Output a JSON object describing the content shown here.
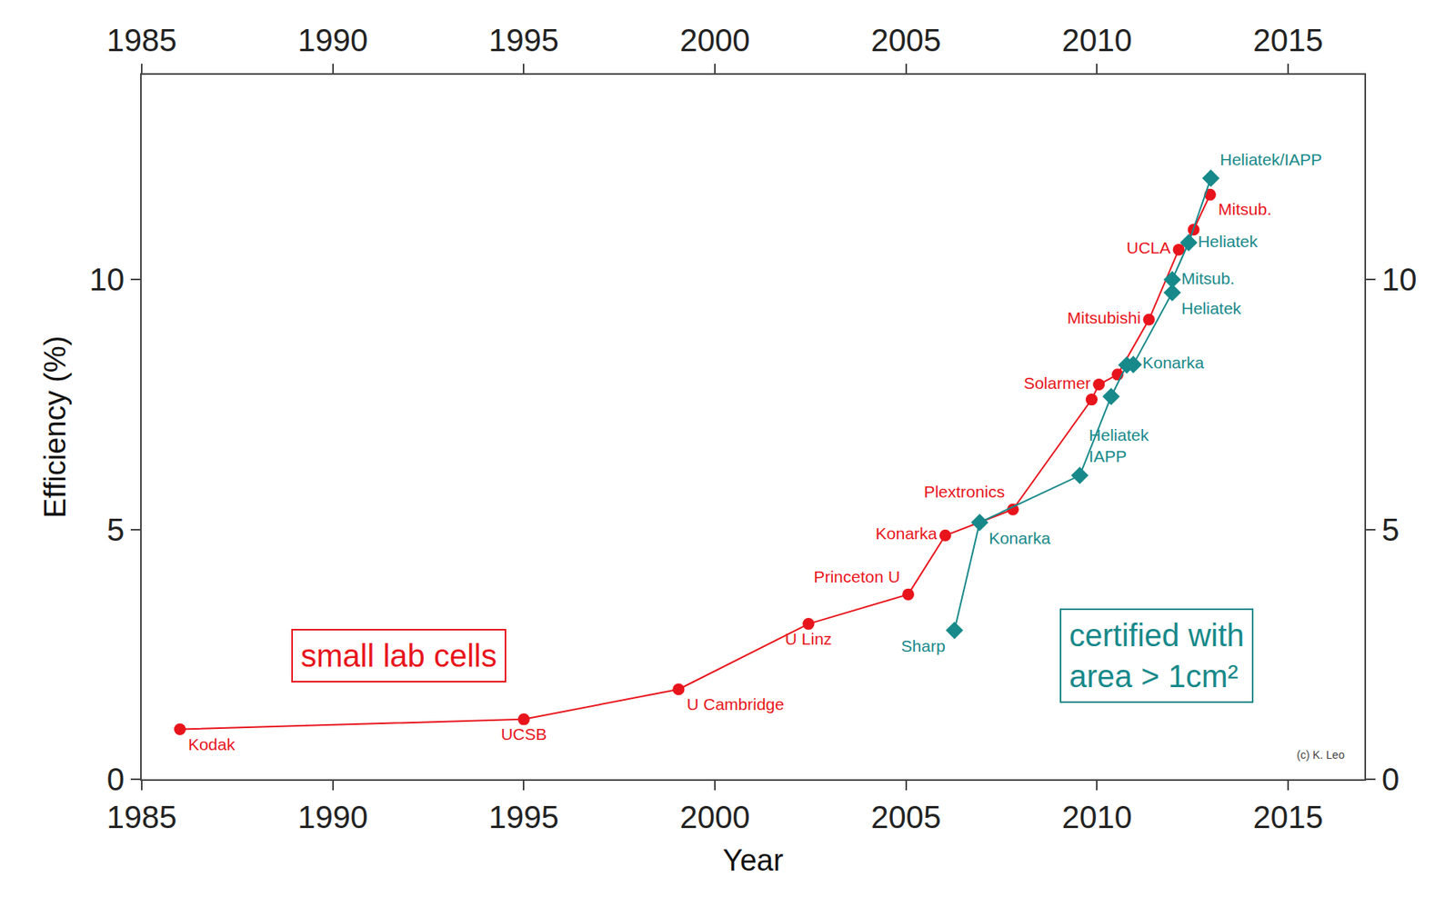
{
  "chart_data": {
    "type": "scatter",
    "x_label": "Year",
    "y_label": "Efficiency (%)",
    "xlim": [
      1985,
      2017
    ],
    "xticks": [
      1985,
      1990,
      1995,
      2000,
      2005,
      2010,
      2015
    ],
    "ylim": [
      0,
      14.1
    ],
    "yticks": [
      0,
      5,
      10
    ],
    "grid": false,
    "annotations": [
      "(c) K. Leo"
    ],
    "series": [
      {
        "name": "small lab cells",
        "color": "#e8141c",
        "marker": "circle",
        "line_style": "solid",
        "x": [
          1986.0,
          1995.0,
          1999.05,
          2002.45,
          2005.06,
          2006.03,
          2007.8,
          2009.86,
          2010.05,
          2010.54,
          2011.36,
          2012.14,
          2012.53,
          2012.96
        ],
        "values": [
          1.0,
          1.2,
          1.8,
          3.11,
          3.7,
          4.88,
          5.4,
          7.6,
          7.9,
          8.1,
          9.2,
          10.6,
          11.0,
          11.7
        ],
        "labels": [
          "Kodak",
          "UCSB",
          "U Cambridge",
          "U Linz",
          "Princeton U",
          "Konarka",
          "Plextronics",
          null,
          "Solarmer",
          null,
          "Mitsubishi",
          "UCLA",
          null,
          "Mitsub."
        ]
      },
      {
        "name": "certified with\narea > 1cm²",
        "color": "#17898a",
        "marker": "diamond",
        "line_style": "solid",
        "x": [
          2006.27,
          2006.93,
          2009.55,
          2010.37,
          2010.78,
          2010.95,
          2011.97,
          2011.97,
          2012.4,
          2012.98
        ],
        "values": [
          2.98,
          5.14,
          6.08,
          7.66,
          8.29,
          8.3,
          9.74,
          10.0,
          10.74,
          12.03
        ],
        "labels": [
          "Sharp",
          "Konarka",
          "Heliatek\nIAPP",
          null,
          null,
          "Konarka",
          "Heliatek",
          "Mitsub.",
          "Heliatek",
          "Heliatek/IAPP"
        ]
      }
    ]
  }
}
